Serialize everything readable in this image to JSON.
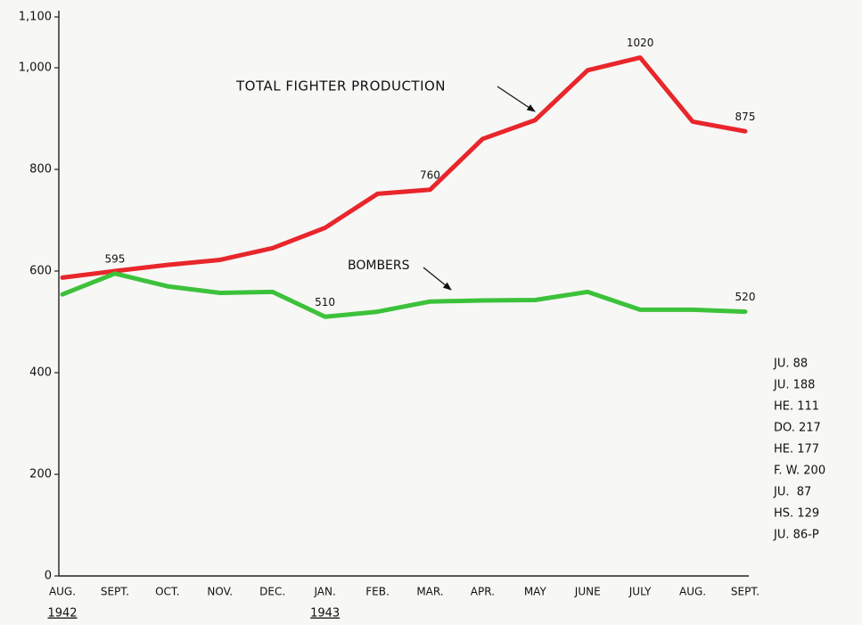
{
  "chart_data": {
    "type": "line",
    "categories": [
      "AUG.",
      "SEPT.",
      "OCT.",
      "NOV.",
      "DEC.",
      "JAN.",
      "FEB.",
      "MAR.",
      "APR.",
      "MAY",
      "JUNE",
      "JULY",
      "AUG.",
      "SEPT."
    ],
    "x_sublabels": [
      "1942",
      null,
      null,
      null,
      null,
      "1943",
      null,
      null,
      null,
      null,
      null,
      null,
      null,
      null
    ],
    "series": [
      {
        "name": "TOTAL FIGHTER PRODUCTION",
        "color": "#e8262b",
        "values": [
          587,
          600,
          612,
          622,
          645,
          685,
          752,
          760,
          860,
          897,
          995,
          1020,
          894,
          875
        ],
        "value_labels": [
          null,
          null,
          null,
          null,
          null,
          null,
          null,
          "760",
          null,
          null,
          null,
          "1020",
          null,
          "875"
        ]
      },
      {
        "name": "BOMBERS",
        "color": "#3cc23a",
        "values": [
          554,
          595,
          570,
          557,
          559,
          510,
          520,
          540,
          542,
          543,
          559,
          524,
          524,
          520
        ],
        "value_labels": [
          null,
          "595",
          null,
          null,
          null,
          "510",
          null,
          null,
          null,
          null,
          null,
          null,
          null,
          "520"
        ]
      }
    ],
    "ylim": [
      0,
      1100
    ],
    "yticks": [
      0,
      200,
      400,
      600,
      800,
      {
        "value": 1000,
        "label": "1,000"
      },
      {
        "value": 1100,
        "label": "1,100"
      }
    ],
    "bomber_types": [
      "JU. 88",
      "JU. 188",
      "HE. 111",
      "DO. 217",
      "HE. 177",
      "F. W. 200",
      "JU.  87",
      "HS. 129",
      "JU. 86-P"
    ]
  }
}
